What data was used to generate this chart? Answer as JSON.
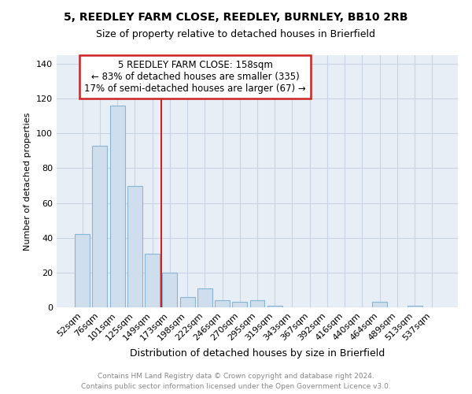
{
  "title": "5, REEDLEY FARM CLOSE, REEDLEY, BURNLEY, BB10 2RB",
  "subtitle": "Size of property relative to detached houses in Brierfield",
  "xlabel": "Distribution of detached houses by size in Brierfield",
  "ylabel": "Number of detached properties",
  "bar_labels": [
    "52sqm",
    "76sqm",
    "101sqm",
    "125sqm",
    "149sqm",
    "173sqm",
    "198sqm",
    "222sqm",
    "246sqm",
    "270sqm",
    "295sqm",
    "319sqm",
    "343sqm",
    "367sqm",
    "392sqm",
    "416sqm",
    "440sqm",
    "464sqm",
    "489sqm",
    "513sqm",
    "537sqm"
  ],
  "bar_values": [
    42,
    93,
    116,
    70,
    31,
    20,
    6,
    11,
    4,
    3,
    4,
    1,
    0,
    0,
    0,
    0,
    0,
    3,
    0,
    1,
    0
  ],
  "bar_color": "#cfdeed",
  "bar_edgecolor": "#8ab4d4",
  "vline_index": 4.5,
  "marker_label": "5 REEDLEY FARM CLOSE: 158sqm",
  "annotation_line1": "← 83% of detached houses are smaller (335)",
  "annotation_line2": "17% of semi-detached houses are larger (67) →",
  "vline_color": "#cc2222",
  "annotation_box_edgecolor": "#cc2222",
  "ylim": [
    0,
    145
  ],
  "yticks": [
    0,
    20,
    40,
    60,
    80,
    100,
    120,
    140
  ],
  "footer1": "Contains HM Land Registry data © Crown copyright and database right 2024.",
  "footer2": "Contains public sector information licensed under the Open Government Licence v3.0.",
  "plot_bg_color": "#e8eef6",
  "fig_bg_color": "#ffffff",
  "grid_color": "#c8d4e4",
  "title_fontsize": 10,
  "subtitle_fontsize": 9,
  "ylabel_fontsize": 8,
  "xlabel_fontsize": 9,
  "tick_fontsize": 8,
  "annot_fontsize": 8.5,
  "footer_fontsize": 6.5
}
